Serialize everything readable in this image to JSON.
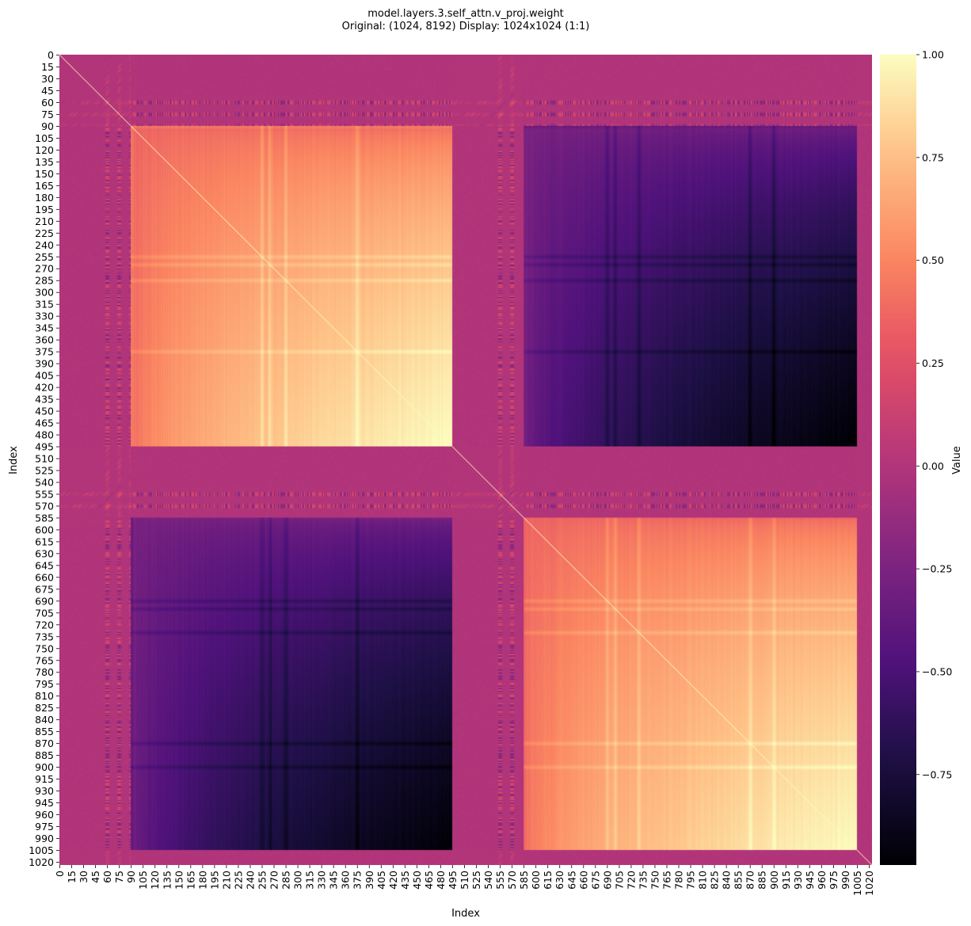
{
  "chart_data": {
    "type": "heatmap",
    "title": "model.layers.3.self_attn.v_proj.weight",
    "subtitle": "Original: (1024, 8192)  Display: 1024x1024 (1:1)",
    "xlabel": "Index",
    "ylabel": "Index",
    "colorbar_label": "Value",
    "xlim": [
      0,
      1024
    ],
    "ylim": [
      0,
      1024
    ],
    "x_ticks": [
      0,
      15,
      30,
      45,
      60,
      75,
      90,
      105,
      120,
      135,
      150,
      165,
      180,
      195,
      210,
      225,
      240,
      255,
      270,
      285,
      300,
      315,
      330,
      345,
      360,
      375,
      390,
      405,
      420,
      435,
      450,
      465,
      480,
      495,
      510,
      525,
      540,
      555,
      570,
      585,
      600,
      615,
      630,
      645,
      660,
      675,
      690,
      705,
      720,
      735,
      750,
      765,
      780,
      795,
      810,
      825,
      840,
      855,
      870,
      885,
      900,
      915,
      930,
      945,
      960,
      975,
      990,
      1005,
      1020
    ],
    "y_ticks": [
      0,
      15,
      30,
      45,
      60,
      75,
      90,
      105,
      120,
      135,
      150,
      165,
      180,
      195,
      210,
      225,
      240,
      255,
      270,
      285,
      300,
      315,
      330,
      345,
      360,
      375,
      390,
      405,
      420,
      435,
      450,
      465,
      480,
      495,
      510,
      525,
      540,
      555,
      570,
      585,
      600,
      615,
      630,
      645,
      660,
      675,
      690,
      705,
      720,
      735,
      750,
      765,
      780,
      795,
      810,
      825,
      840,
      855,
      870,
      885,
      900,
      915,
      930,
      945,
      960,
      975,
      990,
      1005,
      1020
    ],
    "colorbar": {
      "colormap": "magma",
      "vmin": -0.97,
      "vmax": 1.0,
      "ticks": [
        1.0,
        0.75,
        0.5,
        0.25,
        0.0,
        -0.25,
        -0.5,
        -0.75
      ],
      "tick_labels": [
        "1.00",
        "0.75",
        "0.50",
        "0.25",
        "0.00",
        "−0.25",
        "−0.50",
        "−0.75"
      ]
    },
    "structure": {
      "matrix_size": 1024,
      "blocks": [
        {
          "name": "top-left",
          "rows": [
            90,
            495
          ],
          "cols": [
            90,
            495
          ],
          "min": 0.35,
          "max": 1.0
        },
        {
          "name": "top-right",
          "rows": [
            90,
            495
          ],
          "cols": [
            585,
            1005
          ],
          "min": -0.97,
          "max": -0.25
        },
        {
          "name": "bottom-left",
          "rows": [
            585,
            1005
          ],
          "cols": [
            90,
            495
          ],
          "min": -0.97,
          "max": -0.25
        },
        {
          "name": "bottom-right",
          "rows": [
            585,
            1005
          ],
          "cols": [
            585,
            1005
          ],
          "min": 0.35,
          "max": 1.0
        }
      ],
      "background_value": 0.0,
      "diagonal_value": 1.0,
      "highlight_bands": [
        60,
        75,
        90,
        255,
        265,
        285,
        375,
        555,
        570,
        690,
        700,
        730,
        870,
        900
      ]
    }
  }
}
